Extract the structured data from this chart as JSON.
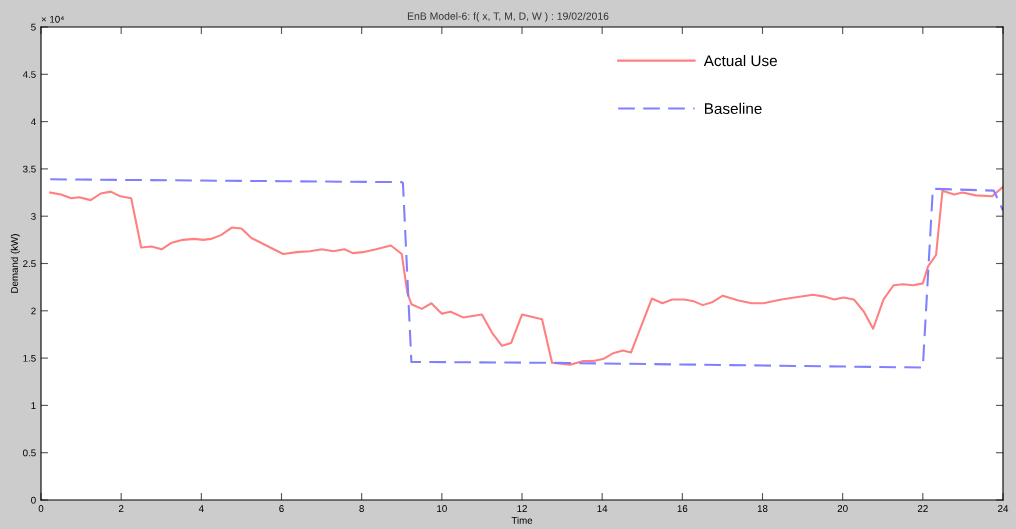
{
  "chart_data": {
    "type": "line",
    "title": "EnB Model-6: f( x, T, M, D, W ) : 19/02/2016",
    "xlabel": "Time",
    "ylabel": "Demand (kW)",
    "annotations": [
      "× 10⁴"
    ],
    "series": [
      {
        "name": "Actual Use",
        "color": "#ff8080",
        "line_style": "solid",
        "x": [
          0.23,
          0.5,
          0.75,
          0.95,
          1.24,
          1.49,
          1.74,
          1.98,
          2.25,
          2.5,
          2.76,
          3.01,
          3.26,
          3.54,
          3.83,
          4.04,
          4.24,
          4.49,
          4.76,
          5.0,
          5.25,
          6.04,
          6.38,
          6.71,
          7.0,
          7.29,
          7.57,
          7.78,
          8.03,
          8.36,
          8.73,
          9.0,
          9.14,
          9.24,
          9.5,
          9.74,
          10.0,
          10.22,
          10.53,
          11.0,
          11.25,
          11.5,
          11.73,
          12.0,
          12.5,
          12.75,
          13.2,
          13.53,
          13.78,
          14.02,
          14.27,
          14.52,
          14.72,
          15.24,
          15.5,
          15.75,
          16.04,
          16.29,
          16.51,
          16.74,
          17.01,
          17.4,
          17.73,
          18.02,
          18.47,
          18.8,
          19.26,
          19.54,
          19.79,
          20.02,
          20.28,
          20.53,
          20.76,
          21.02,
          21.27,
          21.51,
          21.76,
          22.0,
          22.13,
          22.33,
          22.49,
          22.78,
          22.99,
          23.32,
          23.73,
          24.0
        ],
        "values": [
          3.25,
          3.23,
          3.19,
          3.2,
          3.17,
          3.24,
          3.26,
          3.21,
          3.19,
          2.67,
          2.68,
          2.65,
          2.72,
          2.75,
          2.76,
          2.75,
          2.76,
          2.8,
          2.88,
          2.87,
          2.77,
          2.6,
          2.62,
          2.63,
          2.65,
          2.63,
          2.65,
          2.61,
          2.62,
          2.65,
          2.69,
          2.6,
          2.19,
          2.07,
          2.02,
          2.08,
          1.97,
          1.99,
          1.93,
          1.96,
          1.77,
          1.63,
          1.66,
          1.96,
          1.91,
          1.45,
          1.43,
          1.47,
          1.47,
          1.49,
          1.55,
          1.58,
          1.56,
          2.13,
          2.08,
          2.12,
          2.12,
          2.1,
          2.06,
          2.09,
          2.16,
          2.11,
          2.08,
          2.08,
          2.12,
          2.14,
          2.17,
          2.15,
          2.12,
          2.14,
          2.12,
          1.99,
          1.81,
          2.12,
          2.27,
          2.28,
          2.27,
          2.29,
          2.47,
          2.59,
          3.27,
          3.23,
          3.25,
          3.22,
          3.21,
          3.31
        ]
      },
      {
        "name": "Baseline",
        "color": "#8080ff",
        "line_style": "dashed",
        "x": [
          0.23,
          6.0,
          9.0,
          9.03,
          9.24,
          12.75,
          22.0,
          22.25,
          23.77,
          24.0
        ],
        "values": [
          3.39,
          3.37,
          3.36,
          3.35,
          1.46,
          1.45,
          1.4,
          3.29,
          3.27,
          3.06
        ]
      }
    ],
    "xlim": [
      0,
      24
    ],
    "xticks": [
      0,
      2,
      4,
      6,
      8,
      10,
      12,
      14,
      16,
      18,
      20,
      22,
      24
    ],
    "ylim": [
      0,
      5
    ],
    "yticks": [
      0,
      0.5,
      1,
      1.5,
      2,
      2.5,
      3,
      3.5,
      4,
      4.5,
      5
    ],
    "grid": false,
    "legend": "top right",
    "marker": "none"
  }
}
